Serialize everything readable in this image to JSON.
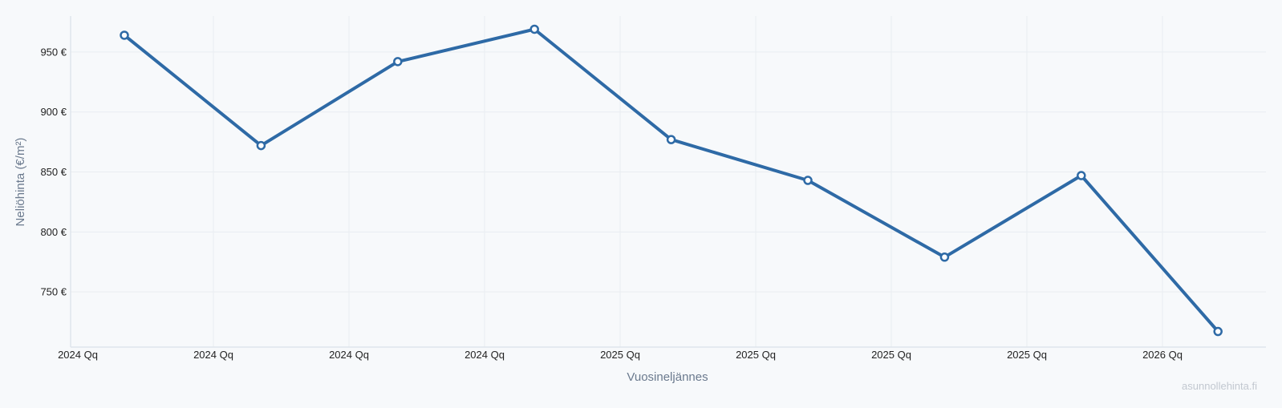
{
  "chart_data": {
    "type": "line",
    "title": "",
    "xlabel": "Vuosineljännes",
    "ylabel": "Neliöhinta (€/m²)",
    "x_tick_labels": [
      "2024 Qq",
      "2024 Qq",
      "2024 Qq",
      "2024 Qq",
      "2025 Qq",
      "2025 Qq",
      "2025 Qq",
      "2025 Qq",
      "2026 Qq"
    ],
    "y_ticks": [
      750,
      800,
      850,
      900,
      950
    ],
    "y_tick_labels": [
      "750 €",
      "800 €",
      "850 €",
      "900 €",
      "950 €"
    ],
    "ylim": [
      704,
      980
    ],
    "grid": true,
    "series": [
      {
        "values": [
          964,
          872,
          942,
          969,
          877,
          843,
          779,
          847,
          717
        ]
      }
    ],
    "colors": {
      "line": "#2e6aa6",
      "marker_fill": "#ffffff",
      "grid": "#e9edf1",
      "axis": "#dfe5ec",
      "background": "#f7f9fb"
    }
  },
  "watermark": "asunnollehinta.fi"
}
